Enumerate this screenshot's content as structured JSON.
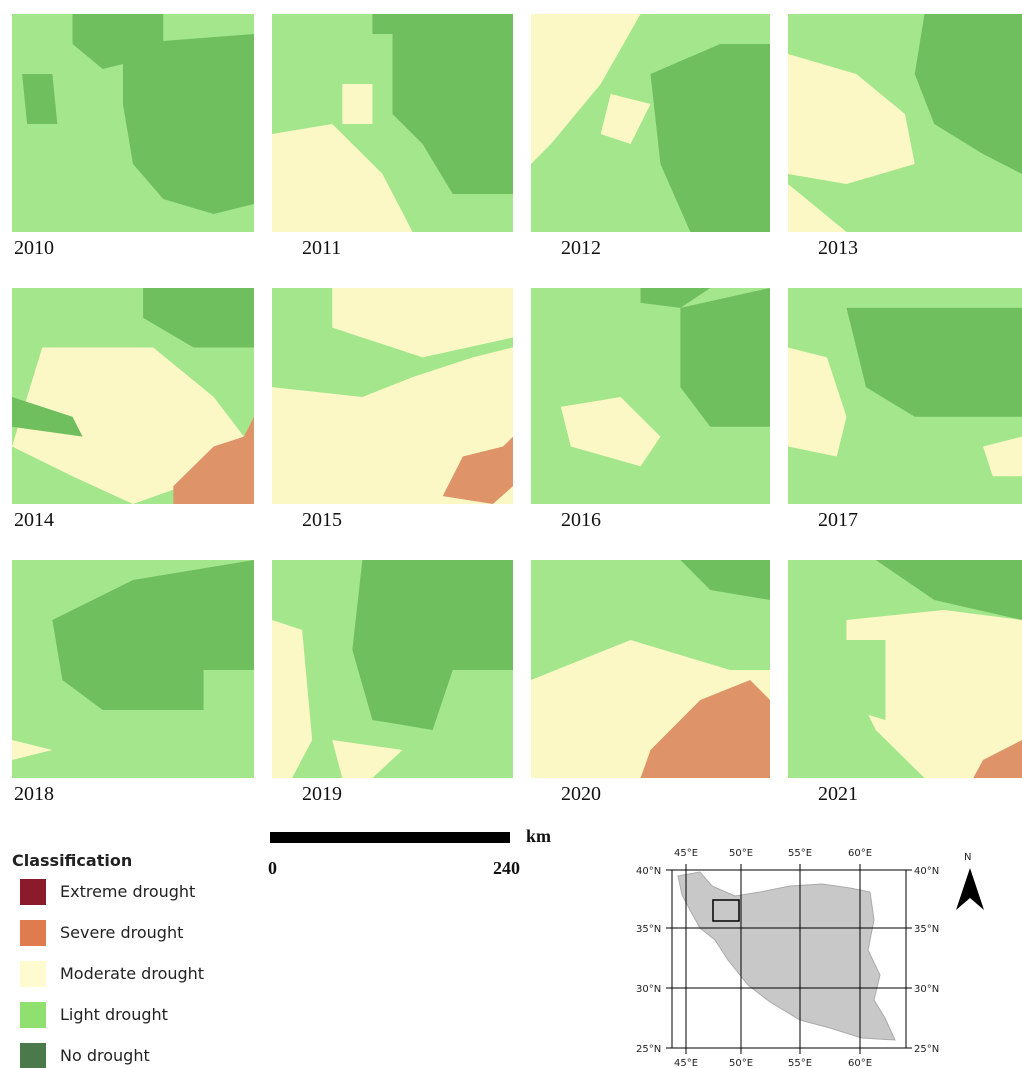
{
  "panels": [
    {
      "year": "2010"
    },
    {
      "year": "2011"
    },
    {
      "year": "2012"
    },
    {
      "year": "2013"
    },
    {
      "year": "2014"
    },
    {
      "year": "2015"
    },
    {
      "year": "2016"
    },
    {
      "year": "2017"
    },
    {
      "year": "2018"
    },
    {
      "year": "2019"
    },
    {
      "year": "2020"
    },
    {
      "year": "2021"
    }
  ],
  "legend": {
    "title": "Classification",
    "items": [
      {
        "label": "Extreme drought",
        "color": "#8b1a2b"
      },
      {
        "label": "Severe drought",
        "color": "#e07a4f"
      },
      {
        "label": "Moderate drought",
        "color": "#fffbd0"
      },
      {
        "label": "Light drought",
        "color": "#90e070"
      },
      {
        "label": "No drought",
        "color": "#4a7a4a"
      }
    ]
  },
  "scale_bar": {
    "start": "0",
    "end": "240",
    "unit": "km"
  },
  "inset": {
    "lon_labels": [
      "45°E",
      "50°E",
      "55°E",
      "60°E"
    ],
    "lat_labels": [
      "40°N",
      "35°N",
      "30°N",
      "25°N"
    ],
    "north": "N"
  }
}
